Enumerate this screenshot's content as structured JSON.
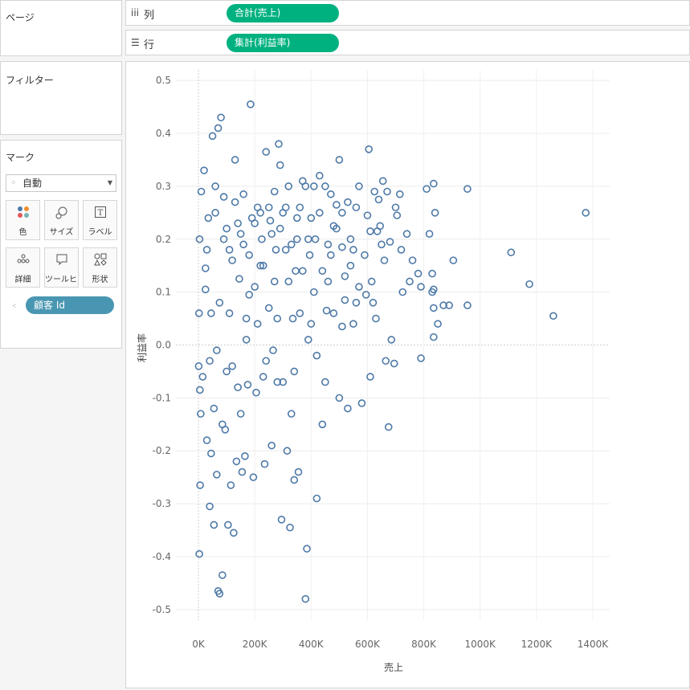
{
  "pages_panel": {
    "title": "ページ"
  },
  "filters_panel": {
    "title": "フィルター"
  },
  "marks_panel": {
    "title": "マーク",
    "mark_type": "自動",
    "buttons": [
      {
        "label": "色",
        "icon": "color-dots-icon"
      },
      {
        "label": "サイズ",
        "icon": "size-icon"
      },
      {
        "label": "ラベル",
        "icon": "label-icon"
      },
      {
        "label": "詳細",
        "icon": "detail-icon"
      },
      {
        "label": "ツールヒ…",
        "icon": "tooltip-icon"
      },
      {
        "label": "形状",
        "icon": "shape-icon"
      }
    ],
    "detail_pill": "顧客 Id"
  },
  "shelves": {
    "columns": {
      "icon": "iii",
      "label": "列",
      "pill": "合計(売上)"
    },
    "rows": {
      "icon": "☰",
      "label": "行",
      "pill": "集計(利益率)"
    }
  },
  "colors": {
    "mark": "#4e79a7",
    "columns_pill": "#00b180",
    "detail_pill": "#4996b2"
  },
  "chart_data": {
    "type": "scatter",
    "mark_shape": "circle-open",
    "xlabel": "売上",
    "ylabel": "利益率",
    "x_ticks": [
      "0K",
      "200K",
      "400K",
      "600K",
      "800K",
      "1000K",
      "1200K",
      "1400K"
    ],
    "y_ticks": [
      "0.5",
      "0.4",
      "0.3",
      "0.2",
      "0.1",
      "0.0",
      "-0.1",
      "-0.2",
      "-0.3",
      "-0.4",
      "-0.5"
    ],
    "xlim": [
      -80000,
      1460000
    ],
    "ylim": [
      -0.52,
      0.52
    ],
    "grid": true,
    "points": [
      [
        1375000,
        0.25
      ],
      [
        1260000,
        0.055
      ],
      [
        1175000,
        0.115
      ],
      [
        1110000,
        0.175
      ],
      [
        955000,
        0.295
      ],
      [
        955000,
        0.075
      ],
      [
        905000,
        0.16
      ],
      [
        890000,
        0.075
      ],
      [
        870000,
        0.075
      ],
      [
        850000,
        0.04
      ],
      [
        835000,
        0.305
      ],
      [
        840000,
        0.25
      ],
      [
        835000,
        0.105
      ],
      [
        830000,
        0.1
      ],
      [
        835000,
        0.07
      ],
      [
        830000,
        0.135
      ],
      [
        835000,
        0.015
      ],
      [
        820000,
        0.21
      ],
      [
        810000,
        0.295
      ],
      [
        790000,
        0.11
      ],
      [
        780000,
        0.135
      ],
      [
        790000,
        -0.025
      ],
      [
        760000,
        0.16
      ],
      [
        750000,
        0.12
      ],
      [
        725000,
        0.1
      ],
      [
        720000,
        0.18
      ],
      [
        695000,
        -0.035
      ],
      [
        705000,
        0.245
      ],
      [
        715000,
        0.285
      ],
      [
        680000,
        0.195
      ],
      [
        670000,
        0.29
      ],
      [
        660000,
        0.16
      ],
      [
        655000,
        0.31
      ],
      [
        645000,
        0.225
      ],
      [
        640000,
        0.275
      ],
      [
        635000,
        0.215
      ],
      [
        630000,
        0.05
      ],
      [
        620000,
        0.08
      ],
      [
        615000,
        0.12
      ],
      [
        610000,
        0.215
      ],
      [
        605000,
        0.37
      ],
      [
        600000,
        0.245
      ],
      [
        595000,
        0.095
      ],
      [
        580000,
        -0.11
      ],
      [
        570000,
        0.3
      ],
      [
        560000,
        0.08
      ],
      [
        550000,
        0.18
      ],
      [
        540000,
        0.15
      ],
      [
        530000,
        0.27
      ],
      [
        520000,
        0.085
      ],
      [
        510000,
        0.185
      ],
      [
        510000,
        0.035
      ],
      [
        500000,
        0.35
      ],
      [
        490000,
        0.265
      ],
      [
        480000,
        0.225
      ],
      [
        470000,
        0.285
      ],
      [
        460000,
        0.12
      ],
      [
        455000,
        0.065
      ],
      [
        450000,
        -0.07
      ],
      [
        440000,
        -0.15
      ],
      [
        430000,
        0.32
      ],
      [
        420000,
        -0.29
      ],
      [
        415000,
        0.2
      ],
      [
        410000,
        0.1
      ],
      [
        400000,
        0.24
      ],
      [
        395000,
        0.17
      ],
      [
        390000,
        0.01
      ],
      [
        385000,
        -0.385
      ],
      [
        380000,
        -0.48
      ],
      [
        370000,
        0.31
      ],
      [
        360000,
        0.26
      ],
      [
        355000,
        -0.24
      ],
      [
        350000,
        0.2
      ],
      [
        345000,
        0.14
      ],
      [
        340000,
        -0.255
      ],
      [
        335000,
        0.05
      ],
      [
        330000,
        -0.13
      ],
      [
        325000,
        -0.345
      ],
      [
        320000,
        0.3
      ],
      [
        315000,
        -0.2
      ],
      [
        310000,
        0.18
      ],
      [
        300000,
        0.25
      ],
      [
        295000,
        -0.33
      ],
      [
        290000,
        0.34
      ],
      [
        285000,
        0.38
      ],
      [
        280000,
        -0.07
      ],
      [
        275000,
        0.18
      ],
      [
        270000,
        0.12
      ],
      [
        265000,
        -0.01
      ],
      [
        260000,
        -0.19
      ],
      [
        255000,
        0.235
      ],
      [
        250000,
        0.07
      ],
      [
        240000,
        0.365
      ],
      [
        235000,
        -0.225
      ],
      [
        230000,
        -0.06
      ],
      [
        225000,
        0.2
      ],
      [
        220000,
        0.15
      ],
      [
        210000,
        0.26
      ],
      [
        205000,
        -0.09
      ],
      [
        200000,
        0.11
      ],
      [
        195000,
        -0.25
      ],
      [
        190000,
        0.24
      ],
      [
        185000,
        0.455
      ],
      [
        180000,
        0.17
      ],
      [
        175000,
        -0.075
      ],
      [
        170000,
        0.05
      ],
      [
        165000,
        -0.21
      ],
      [
        160000,
        0.285
      ],
      [
        155000,
        -0.24
      ],
      [
        150000,
        0.21
      ],
      [
        145000,
        0.125
      ],
      [
        140000,
        -0.08
      ],
      [
        135000,
        -0.22
      ],
      [
        130000,
        0.35
      ],
      [
        125000,
        -0.355
      ],
      [
        120000,
        0.16
      ],
      [
        115000,
        -0.265
      ],
      [
        110000,
        0.06
      ],
      [
        105000,
        -0.34
      ],
      [
        100000,
        0.22
      ],
      [
        95000,
        -0.16
      ],
      [
        90000,
        0.28
      ],
      [
        85000,
        -0.15
      ],
      [
        80000,
        0.43
      ],
      [
        75000,
        -0.47
      ],
      [
        70000,
        0.41
      ],
      [
        65000,
        -0.01
      ],
      [
        60000,
        0.25
      ],
      [
        55000,
        -0.12
      ],
      [
        50000,
        0.395
      ],
      [
        45000,
        0.06
      ],
      [
        40000,
        -0.305
      ],
      [
        35000,
        0.24
      ],
      [
        30000,
        -0.18
      ],
      [
        25000,
        0.145
      ],
      [
        20000,
        0.33
      ],
      [
        15000,
        -0.06
      ],
      [
        10000,
        0.29
      ],
      [
        8000,
        -0.13
      ],
      [
        6000,
        -0.265
      ],
      [
        5000,
        -0.085
      ],
      [
        4000,
        0.2
      ],
      [
        3000,
        -0.395
      ],
      [
        2000,
        0.06
      ],
      [
        1000,
        -0.04
      ],
      [
        85000,
        -0.435
      ],
      [
        70000,
        -0.465
      ],
      [
        55000,
        -0.34
      ],
      [
        45000,
        -0.205
      ],
      [
        30000,
        0.18
      ],
      [
        25000,
        0.105
      ],
      [
        40000,
        -0.03
      ],
      [
        60000,
        0.3
      ],
      [
        65000,
        -0.245
      ],
      [
        75000,
        0.08
      ],
      [
        90000,
        0.2
      ],
      [
        100000,
        -0.05
      ],
      [
        110000,
        0.18
      ],
      [
        120000,
        -0.04
      ],
      [
        130000,
        0.27
      ],
      [
        140000,
        0.23
      ],
      [
        150000,
        -0.13
      ],
      [
        160000,
        0.19
      ],
      [
        170000,
        0.01
      ],
      [
        180000,
        0.095
      ],
      [
        200000,
        0.23
      ],
      [
        210000,
        0.04
      ],
      [
        220000,
        0.25
      ],
      [
        230000,
        0.15
      ],
      [
        240000,
        -0.03
      ],
      [
        250000,
        0.26
      ],
      [
        260000,
        0.21
      ],
      [
        270000,
        0.29
      ],
      [
        280000,
        0.05
      ],
      [
        290000,
        0.22
      ],
      [
        300000,
        -0.07
      ],
      [
        310000,
        0.26
      ],
      [
        320000,
        0.12
      ],
      [
        330000,
        0.19
      ],
      [
        340000,
        -0.05
      ],
      [
        350000,
        0.24
      ],
      [
        360000,
        0.06
      ],
      [
        370000,
        0.14
      ],
      [
        380000,
        0.3
      ],
      [
        390000,
        0.2
      ],
      [
        400000,
        0.04
      ],
      [
        410000,
        0.3
      ],
      [
        420000,
        -0.02
      ],
      [
        430000,
        0.25
      ],
      [
        440000,
        0.14
      ],
      [
        450000,
        0.3
      ],
      [
        460000,
        0.19
      ],
      [
        470000,
        0.17
      ],
      [
        480000,
        0.06
      ],
      [
        490000,
        0.22
      ],
      [
        500000,
        -0.1
      ],
      [
        510000,
        0.25
      ],
      [
        520000,
        0.13
      ],
      [
        530000,
        -0.12
      ],
      [
        540000,
        0.2
      ],
      [
        550000,
        0.04
      ],
      [
        560000,
        0.26
      ],
      [
        570000,
        0.11
      ],
      [
        590000,
        0.17
      ],
      [
        610000,
        -0.06
      ],
      [
        625000,
        0.29
      ],
      [
        650000,
        0.19
      ],
      [
        665000,
        -0.03
      ],
      [
        675000,
        -0.155
      ],
      [
        685000,
        0.01
      ],
      [
        700000,
        0.26
      ],
      [
        740000,
        0.21
      ]
    ]
  }
}
